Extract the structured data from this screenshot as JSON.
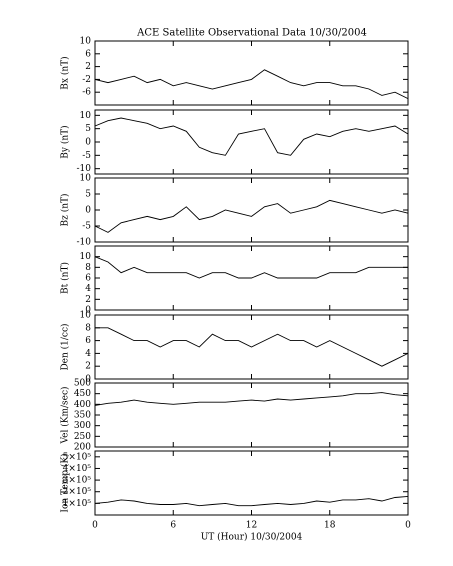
{
  "title": "ACE Satellite Observational Data   10/30/2004",
  "chart_data": [
    {
      "type": "line",
      "y_label": "Bx (nT)",
      "color": "#000000",
      "xlim": [
        0,
        24
      ],
      "xticks": [
        0,
        6,
        12,
        18,
        {
          "value": 24,
          "label": "0"
        }
      ],
      "x": [
        0,
        1,
        2,
        3,
        4,
        5,
        6,
        7,
        8,
        9,
        10,
        11,
        12,
        13,
        14,
        15,
        16,
        17,
        18,
        19,
        20,
        21,
        22,
        23,
        24
      ],
      "series": [
        {
          "name": "Bx",
          "color": "#000000",
          "values": [
            -2,
            -3,
            -2,
            -1,
            -3,
            -2,
            -4,
            -3,
            -4,
            -5,
            -4,
            -3,
            -2,
            1,
            -1,
            -3,
            -4,
            -3,
            -3,
            -4,
            -4,
            -5,
            -7,
            -6,
            -8
          ]
        }
      ],
      "ylim": [
        -10,
        10
      ],
      "yticks": [
        -6,
        -2,
        2,
        6,
        10
      ]
    },
    {
      "type": "line",
      "y_label": "By (nT)",
      "color": "#000000",
      "xlim": [
        0,
        24
      ],
      "xticks": [
        0,
        6,
        12,
        18,
        {
          "value": 24,
          "label": "0"
        }
      ],
      "x": [
        0,
        1,
        2,
        3,
        4,
        5,
        6,
        7,
        8,
        9,
        10,
        11,
        12,
        13,
        14,
        15,
        16,
        17,
        18,
        19,
        20,
        21,
        22,
        23,
        24
      ],
      "series": [
        {
          "name": "By",
          "color": "#000000",
          "values": [
            6,
            8,
            9,
            8,
            7,
            5,
            6,
            4,
            -2,
            -4,
            -5,
            3,
            4,
            5,
            -4,
            -5,
            1,
            3,
            2,
            4,
            5,
            4,
            5,
            6,
            3
          ]
        }
      ],
      "ylim": [
        -12,
        12
      ],
      "yticks": [
        -10,
        -5,
        0,
        5,
        10
      ]
    },
    {
      "type": "line",
      "y_label": "Bz (nT)",
      "color": "#000000",
      "xlim": [
        0,
        24
      ],
      "xticks": [
        0,
        6,
        12,
        18,
        {
          "value": 24,
          "label": "0"
        }
      ],
      "x": [
        0,
        1,
        2,
        3,
        4,
        5,
        6,
        7,
        8,
        9,
        10,
        11,
        12,
        13,
        14,
        15,
        16,
        17,
        18,
        19,
        20,
        21,
        22,
        23,
        24
      ],
      "series": [
        {
          "name": "Bz",
          "color": "#000000",
          "values": [
            -5,
            -7,
            -4,
            -3,
            -2,
            -3,
            -2,
            1,
            -3,
            -2,
            0,
            -1,
            -2,
            1,
            2,
            -1,
            0,
            1,
            3,
            2,
            1,
            0,
            -1,
            0,
            -1
          ]
        }
      ],
      "ylim": [
        -10,
        10
      ],
      "yticks": [
        -10,
        -5,
        0,
        5,
        10
      ]
    },
    {
      "type": "line",
      "y_label": "Bt (nT)",
      "color": "#000000",
      "xlim": [
        0,
        24
      ],
      "xticks": [
        0,
        6,
        12,
        18,
        {
          "value": 24,
          "label": "0"
        }
      ],
      "x": [
        0,
        1,
        2,
        3,
        4,
        5,
        6,
        7,
        8,
        9,
        10,
        11,
        12,
        13,
        14,
        15,
        16,
        17,
        18,
        19,
        20,
        21,
        22,
        23,
        24
      ],
      "series": [
        {
          "name": "Bt",
          "color": "#000000",
          "values": [
            10,
            9,
            7,
            8,
            7,
            7,
            7,
            7,
            6,
            7,
            7,
            6,
            6,
            7,
            6,
            6,
            6,
            6,
            7,
            7,
            7,
            8,
            8,
            8,
            8
          ]
        }
      ],
      "ylim": [
        0,
        12
      ],
      "yticks": [
        0,
        2,
        4,
        6,
        8,
        10
      ]
    },
    {
      "type": "line",
      "y_label": "Den (1/cc)",
      "color": "#000000",
      "xlim": [
        0,
        24
      ],
      "xticks": [
        0,
        6,
        12,
        18,
        {
          "value": 24,
          "label": "0"
        }
      ],
      "x": [
        0,
        1,
        2,
        3,
        4,
        5,
        6,
        7,
        8,
        9,
        10,
        11,
        12,
        13,
        14,
        15,
        16,
        17,
        18,
        19,
        20,
        21,
        22,
        23,
        24
      ],
      "series": [
        {
          "name": "Den",
          "color": "#000000",
          "values": [
            8,
            8,
            7,
            6,
            6,
            5,
            6,
            6,
            5,
            7,
            6,
            6,
            5,
            6,
            7,
            6,
            6,
            5,
            6,
            5,
            4,
            3,
            2,
            3,
            4
          ]
        }
      ],
      "ylim": [
        0,
        10
      ],
      "yticks": [
        0,
        2,
        4,
        6,
        8,
        10
      ]
    },
    {
      "type": "line",
      "y_label": "Vel (Km/sec)",
      "color": "#000000",
      "xlim": [
        0,
        24
      ],
      "xticks": [
        0,
        6,
        12,
        18,
        {
          "value": 24,
          "label": "0"
        }
      ],
      "x": [
        0,
        1,
        2,
        3,
        4,
        5,
        6,
        7,
        8,
        9,
        10,
        11,
        12,
        13,
        14,
        15,
        16,
        17,
        18,
        19,
        20,
        21,
        22,
        23,
        24
      ],
      "series": [
        {
          "name": "Vel",
          "color": "#000000",
          "values": [
            395,
            405,
            410,
            420,
            410,
            405,
            400,
            405,
            410,
            410,
            410,
            415,
            420,
            415,
            425,
            420,
            425,
            430,
            435,
            440,
            450,
            450,
            455,
            445,
            440
          ]
        }
      ],
      "ylim": [
        200,
        500
      ],
      "yticks": [
        200,
        250,
        300,
        350,
        400,
        450,
        500
      ]
    },
    {
      "type": "line",
      "y_label": "Ion Temp (K)",
      "x_label": "UT (Hour)   10/30/2004",
      "color": "#000000",
      "xlim": [
        0,
        24
      ],
      "xticks": [
        0,
        6,
        12,
        18,
        {
          "value": 24,
          "label": "0"
        }
      ],
      "x": [
        0,
        1,
        2,
        3,
        4,
        5,
        6,
        7,
        8,
        9,
        10,
        11,
        12,
        13,
        14,
        15,
        16,
        17,
        18,
        19,
        20,
        21,
        22,
        23,
        24
      ],
      "series": [
        {
          "name": "Ion Temp",
          "color": "#000000",
          "values": [
            100000,
            110000,
            130000,
            120000,
            100000,
            90000,
            90000,
            100000,
            80000,
            90000,
            100000,
            80000,
            80000,
            90000,
            100000,
            90000,
            100000,
            120000,
            110000,
            130000,
            130000,
            140000,
            120000,
            150000,
            160000
          ]
        }
      ],
      "ylim": [
        0,
        550000
      ],
      "yticks": [
        {
          "value": 100000,
          "label": "1×10⁵"
        },
        {
          "value": 200000,
          "label": "2×10⁵"
        },
        {
          "value": 300000,
          "label": "3×10⁵"
        },
        {
          "value": 400000,
          "label": "4×10⁵"
        },
        {
          "value": 500000,
          "label": "5×10⁵"
        }
      ]
    }
  ]
}
